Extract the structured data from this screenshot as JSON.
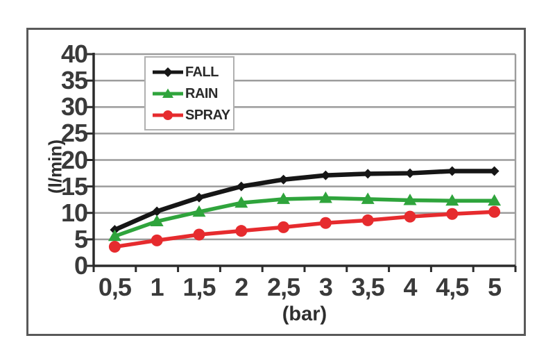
{
  "chart_data": {
    "type": "line",
    "xlabel": "(bar)",
    "ylabel": "(l/min)",
    "categories": [
      "0,5",
      "1",
      "1,5",
      "2",
      "2,5",
      "3",
      "3,5",
      "4",
      "4,5",
      "5"
    ],
    "x_values": [
      0.5,
      1,
      1.5,
      2,
      2.5,
      3,
      3.5,
      4,
      4.5,
      5
    ],
    "y_ticks": [
      0,
      5,
      10,
      15,
      20,
      25,
      30,
      35,
      40
    ],
    "ylim": [
      0,
      40
    ],
    "grid": true,
    "legend_position": "upper-left-inside",
    "series": [
      {
        "name": "FALL",
        "color": "#161616",
        "marker": "diamond",
        "values": [
          6.8,
          10.3,
          12.9,
          15.0,
          16.3,
          17.1,
          17.4,
          17.5,
          17.9,
          17.9
        ]
      },
      {
        "name": "RAIN",
        "color": "#2fa43c",
        "marker": "triangle",
        "values": [
          5.6,
          8.4,
          10.2,
          11.9,
          12.6,
          12.8,
          12.6,
          12.4,
          12.3,
          12.3
        ]
      },
      {
        "name": "SPRAY",
        "color": "#e62b2e",
        "marker": "circle",
        "values": [
          3.6,
          4.8,
          5.9,
          6.6,
          7.3,
          8.1,
          8.6,
          9.3,
          9.8,
          10.2
        ]
      }
    ],
    "colors": {
      "grid": "#9c9c9c",
      "axis": "#2b2b2b",
      "tick_label": "#3a3a3a",
      "figure_border": "#595959",
      "legend_border": "#b0b0b0"
    }
  }
}
